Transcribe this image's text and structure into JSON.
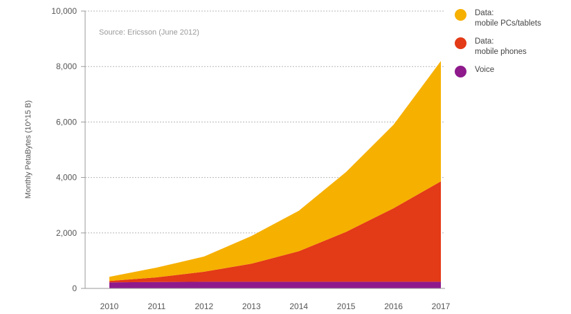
{
  "chart_data": {
    "type": "area",
    "stacked": true,
    "annotation": "Source: Ericsson (June 2012)",
    "ylabel": "Monthly PetaBytes (10^15 B)",
    "ylim": [
      0,
      10000
    ],
    "yticks": [
      "0",
      "2,000",
      "4,000",
      "6,000",
      "8,000",
      "10,000"
    ],
    "ytick_values": [
      0,
      2000,
      4000,
      6000,
      8000,
      10000
    ],
    "categories": [
      "2010",
      "2011",
      "2012",
      "2013",
      "2014",
      "2015",
      "2016",
      "2017"
    ],
    "series": [
      {
        "name": "Voice",
        "color": "#8e1a8c",
        "values": [
          220,
          230,
          240,
          240,
          240,
          240,
          240,
          240
        ]
      },
      {
        "name": "Data:\nmobile phones",
        "color": "#e33a17",
        "values": [
          50,
          170,
          360,
          650,
          1100,
          1800,
          2650,
          3620
        ]
      },
      {
        "name": "Data:\nmobile PCs/tablets",
        "color": "#f6b000",
        "values": [
          150,
          350,
          550,
          1000,
          1460,
          2160,
          3010,
          4340
        ]
      }
    ],
    "legend_order": [
      2,
      1,
      0
    ],
    "legend_position": "top-right",
    "grid": "horizontal-dotted"
  }
}
